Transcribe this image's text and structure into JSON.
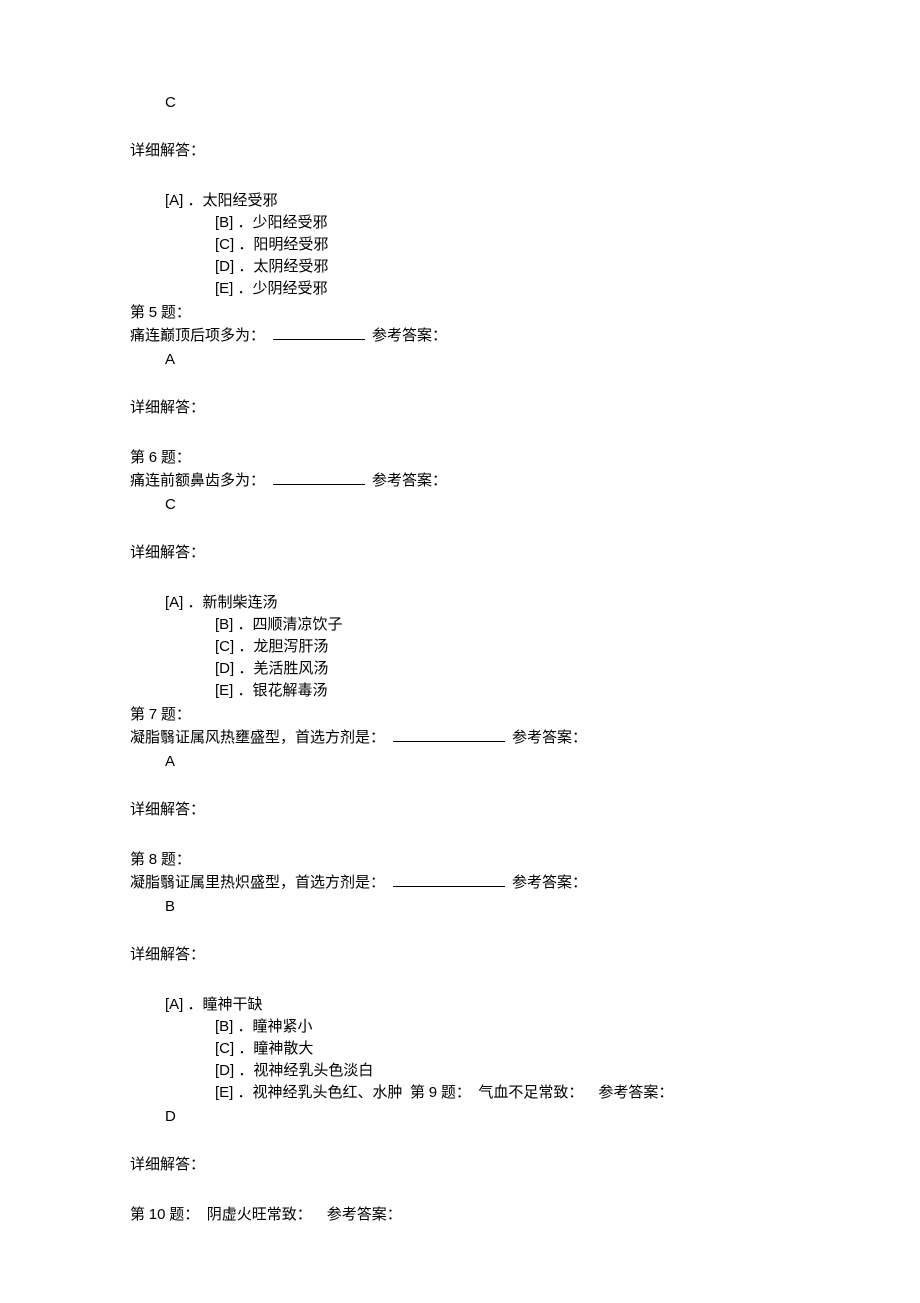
{
  "answers": {
    "q_prev": "C",
    "q5": "A",
    "q6": "C",
    "q7": "A",
    "q8": "B",
    "q9": "D"
  },
  "labels": {
    "detail": "详细解答：",
    "ref_answer": "参考答案：",
    "question_prefix": "第",
    "question_suffix": "题："
  },
  "options_group1": {
    "A": "．太阳经受邪",
    "B": "．少阳经受邪",
    "C": "．阳明经受邪",
    "D": "．太阴经受邪",
    "E": "．少阴经受邪"
  },
  "options_group2": {
    "A": "．新制柴连汤",
    "B": "．四顺清凉饮子",
    "C": "．龙胆泻肝汤",
    "D": "．羌活胜风汤",
    "E": "．银花解毒汤"
  },
  "options_group3": {
    "A": "．瞳神干缺",
    "B": "．瞳神紧小",
    "C": "．瞳神散大",
    "D": "．视神经乳头色淡白",
    "E": "．视神经乳头色红、水肿"
  },
  "questions": {
    "q5": {
      "num": "5",
      "text": "痛连巅顶后项多为："
    },
    "q6": {
      "num": "6",
      "text": "痛连前额鼻齿多为："
    },
    "q7": {
      "num": "7",
      "text": "凝脂翳证属风热壅盛型，首选方剂是："
    },
    "q8": {
      "num": "8",
      "text": "凝脂翳证属里热炽盛型，首选方剂是："
    },
    "q9": {
      "num": "9",
      "text": "气血不足常致："
    },
    "q10": {
      "num": "10",
      "text": "阴虚火旺常致："
    }
  },
  "style": {
    "blank_width_short": "92px",
    "blank_width_long": "112px"
  }
}
